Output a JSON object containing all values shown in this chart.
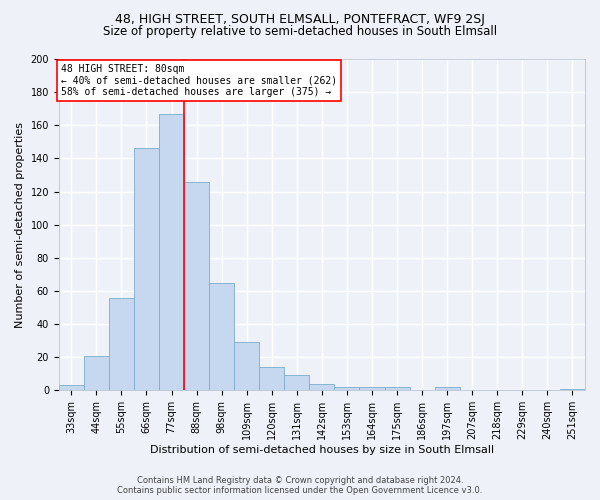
{
  "title": "48, HIGH STREET, SOUTH ELMSALL, PONTEFRACT, WF9 2SJ",
  "subtitle": "Size of property relative to semi-detached houses in South Elmsall",
  "xlabel": "Distribution of semi-detached houses by size in South Elmsall",
  "ylabel": "Number of semi-detached properties",
  "bar_color": "#c5d8f0",
  "bar_edge_color": "#7aadcc",
  "categories": [
    "33sqm",
    "44sqm",
    "55sqm",
    "66sqm",
    "77sqm",
    "88sqm",
    "98sqm",
    "109sqm",
    "120sqm",
    "131sqm",
    "142sqm",
    "153sqm",
    "164sqm",
    "175sqm",
    "186sqm",
    "197sqm",
    "207sqm",
    "218sqm",
    "229sqm",
    "240sqm",
    "251sqm"
  ],
  "values": [
    3,
    21,
    56,
    146,
    167,
    126,
    65,
    29,
    14,
    9,
    4,
    2,
    2,
    2,
    0,
    2,
    0,
    0,
    0,
    0,
    1
  ],
  "property_label": "48 HIGH STREET: 80sqm",
  "red_line_index": 4.5,
  "pct_smaller": 40,
  "count_smaller": 262,
  "pct_larger": 58,
  "count_larger": 375,
  "ylim": [
    0,
    200
  ],
  "yticks": [
    0,
    20,
    40,
    60,
    80,
    100,
    120,
    140,
    160,
    180,
    200
  ],
  "footer_line1": "Contains HM Land Registry data © Crown copyright and database right 2024.",
  "footer_line2": "Contains public sector information licensed under the Open Government Licence v3.0.",
  "background_color": "#eef2f8",
  "grid_color": "#ffffff",
  "title_fontsize": 9,
  "subtitle_fontsize": 8.5,
  "axis_label_fontsize": 8,
  "tick_fontsize": 7,
  "footer_fontsize": 6,
  "annotation_fontsize": 7
}
